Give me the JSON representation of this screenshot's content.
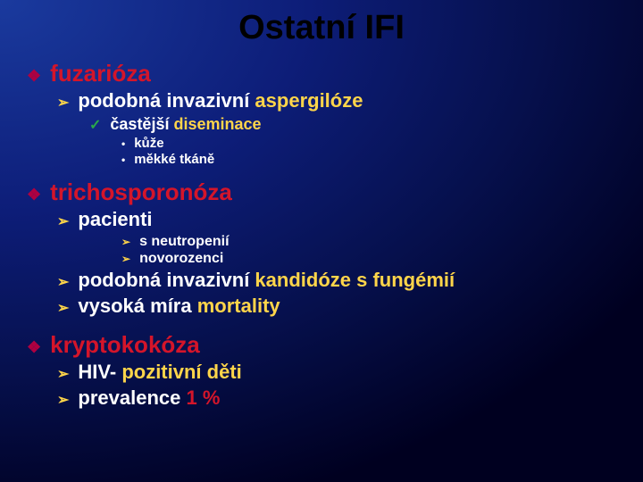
{
  "colors": {
    "title": "#000000",
    "text": "#ffffff",
    "highlight_yellow": "#ffd54a",
    "highlight_red": "#d4152a",
    "bullet_diamond": "#b00040",
    "bullet_arrow": "#ffd54a",
    "bullet_check": "#2aa84a",
    "bullet_dot": "#ffffff",
    "bg_center": "#1a3a9e",
    "bg_edge": "#000020"
  },
  "title": "Ostatní IFI",
  "s1": {
    "head": "fuzarióza",
    "a1_pre": "podobná invazivní ",
    "a1_hl": "aspergilóze",
    "b1_pre": "častější ",
    "b1_hl": "diseminace",
    "c1": "kůže",
    "c2": "měkké tkáně"
  },
  "s2": {
    "head": "trichosporonóza",
    "a1": "pacienti",
    "b1": "s neutropenií",
    "b2": "novorozenci",
    "a2_pre": "podobná invazivní ",
    "a2_hl": "kandidóze s fungémií",
    "a3_pre": "vysoká míra ",
    "a3_hl": "mortality"
  },
  "s3": {
    "head": "kryptokokóza",
    "a1_pre": "HIV- ",
    "a1_hl": "pozitivní děti",
    "a2_pre": "prevalence ",
    "a2_hl": "1 %"
  },
  "bullets": {
    "diamond": "❖",
    "arrow": "➢",
    "check": "✓",
    "dot": "•"
  }
}
